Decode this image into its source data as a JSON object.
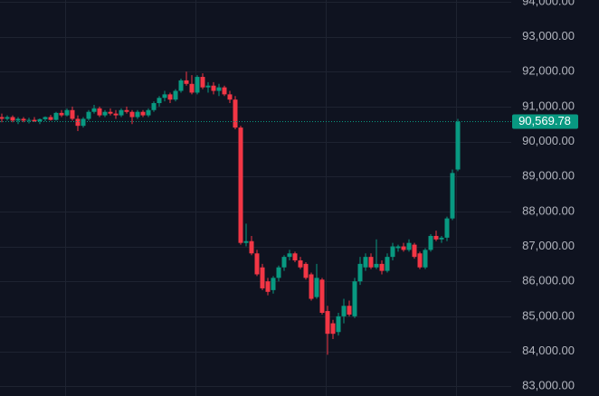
{
  "chart_data": {
    "type": "candlestick",
    "up_color": "#089981",
    "down_color": "#f23645",
    "grid": true,
    "ylim": [
      82720,
      94050
    ],
    "yticks": [
      {
        "value": 94000,
        "label": "94,000.00"
      },
      {
        "value": 93000,
        "label": "93,000.00"
      },
      {
        "value": 92000,
        "label": "92,000.00"
      },
      {
        "value": 91000,
        "label": "91,000.00"
      },
      {
        "value": 90000,
        "label": "90,000.00"
      },
      {
        "value": 89000,
        "label": "89,000.00"
      },
      {
        "value": 88000,
        "label": "88,000.00"
      },
      {
        "value": 87000,
        "label": "87,000.00"
      },
      {
        "value": 86000,
        "label": "86,000.00"
      },
      {
        "value": 85000,
        "label": "85,000.00"
      },
      {
        "value": 84000,
        "label": "84,000.00"
      },
      {
        "value": 83000,
        "label": "83,000.00"
      }
    ],
    "last_price": {
      "value": 90569.78,
      "label": "90,569.78"
    },
    "candles": [
      [
        90700,
        90800,
        90550,
        90650
      ],
      [
        90650,
        90750,
        90600,
        90700
      ],
      [
        90700,
        90750,
        90550,
        90600
      ],
      [
        90600,
        90700,
        90500,
        90650
      ],
      [
        90650,
        90700,
        90550,
        90600
      ],
      [
        90600,
        90680,
        90520,
        90620
      ],
      [
        90620,
        90700,
        90560,
        90580
      ],
      [
        90580,
        90660,
        90500,
        90640
      ],
      [
        90640,
        90720,
        90580,
        90700
      ],
      [
        90700,
        90760,
        90600,
        90620
      ],
      [
        90620,
        90850,
        90600,
        90820
      ],
      [
        90820,
        90900,
        90700,
        90750
      ],
      [
        90750,
        90950,
        90720,
        90900
      ],
      [
        90900,
        91000,
        90600,
        90650
      ],
      [
        90650,
        90750,
        90300,
        90450
      ],
      [
        90450,
        90700,
        90400,
        90650
      ],
      [
        90650,
        90900,
        90600,
        90850
      ],
      [
        90850,
        91050,
        90800,
        90950
      ],
      [
        90950,
        91000,
        90700,
        90750
      ],
      [
        90750,
        90900,
        90700,
        90850
      ],
      [
        90850,
        90950,
        90750,
        90800
      ],
      [
        90800,
        90900,
        90650,
        90750
      ],
      [
        90750,
        90950,
        90700,
        90900
      ],
      [
        90900,
        91000,
        90800,
        90850
      ],
      [
        90850,
        90900,
        90500,
        90700
      ],
      [
        90700,
        90900,
        90650,
        90850
      ],
      [
        90850,
        90900,
        90700,
        90750
      ],
      [
        90750,
        90950,
        90700,
        90900
      ],
      [
        90900,
        91150,
        90850,
        91100
      ],
      [
        91100,
        91300,
        91000,
        91250
      ],
      [
        91250,
        91450,
        91150,
        91350
      ],
      [
        91350,
        91400,
        91100,
        91200
      ],
      [
        91200,
        91500,
        91150,
        91450
      ],
      [
        91450,
        91800,
        91400,
        91750
      ],
      [
        91750,
        92000,
        91600,
        91650
      ],
      [
        91650,
        91900,
        91350,
        91400
      ],
      [
        91400,
        91900,
        91350,
        91850
      ],
      [
        91850,
        91950,
        91500,
        91550
      ],
      [
        91550,
        91700,
        91400,
        91600
      ],
      [
        91600,
        91700,
        91350,
        91450
      ],
      [
        91450,
        91650,
        91300,
        91550
      ],
      [
        91550,
        91600,
        91300,
        91350
      ],
      [
        91350,
        91450,
        91100,
        91200
      ],
      [
        91200,
        91300,
        90350,
        90400
      ],
      [
        90400,
        90450,
        87050,
        87100
      ],
      [
        87100,
        87650,
        87000,
        87150
      ],
      [
        87150,
        87300,
        86750,
        86800
      ],
      [
        86800,
        86900,
        86150,
        86200
      ],
      [
        86400,
        86500,
        85750,
        85800
      ],
      [
        86000,
        86100,
        85600,
        85700
      ],
      [
        85750,
        86150,
        85650,
        86100
      ],
      [
        86100,
        86450,
        86000,
        86400
      ],
      [
        86400,
        86750,
        86300,
        86700
      ],
      [
        86700,
        86900,
        86600,
        86800
      ],
      [
        86800,
        86850,
        86550,
        86600
      ],
      [
        86600,
        86700,
        86350,
        86400
      ],
      [
        86500,
        86550,
        86050,
        86100
      ],
      [
        86200,
        86250,
        85450,
        85500
      ],
      [
        85550,
        86500,
        85500,
        86100
      ],
      [
        86050,
        86100,
        85050,
        85100
      ],
      [
        85150,
        85300,
        83900,
        84500
      ],
      [
        84800,
        84900,
        84350,
        84500
      ],
      [
        84550,
        85100,
        84450,
        85000
      ],
      [
        85000,
        85500,
        84800,
        85300
      ],
      [
        85300,
        85450,
        85000,
        85050
      ],
      [
        85000,
        86100,
        84950,
        86000
      ],
      [
        86000,
        86700,
        85900,
        86500
      ],
      [
        86400,
        86800,
        86300,
        86700
      ],
      [
        86700,
        86800,
        86350,
        86400
      ],
      [
        86400,
        87200,
        86350,
        86500
      ],
      [
        86500,
        86600,
        86200,
        86300
      ],
      [
        86300,
        86800,
        86250,
        86700
      ],
      [
        86700,
        87100,
        86600,
        87000
      ],
      [
        86950,
        87050,
        86850,
        87000
      ],
      [
        87000,
        87100,
        86850,
        86900
      ],
      [
        86900,
        87200,
        86850,
        87100
      ],
      [
        87050,
        87100,
        86650,
        86700
      ],
      [
        86800,
        86850,
        86350,
        86400
      ],
      [
        86400,
        86950,
        86350,
        86900
      ],
      [
        86900,
        87350,
        86850,
        87300
      ],
      [
        87300,
        87450,
        87150,
        87200
      ],
      [
        87200,
        87300,
        87100,
        87250
      ],
      [
        87250,
        87850,
        87150,
        87800
      ],
      [
        87800,
        89200,
        87750,
        89100
      ],
      [
        89200,
        90650,
        89150,
        90569.78
      ]
    ]
  }
}
